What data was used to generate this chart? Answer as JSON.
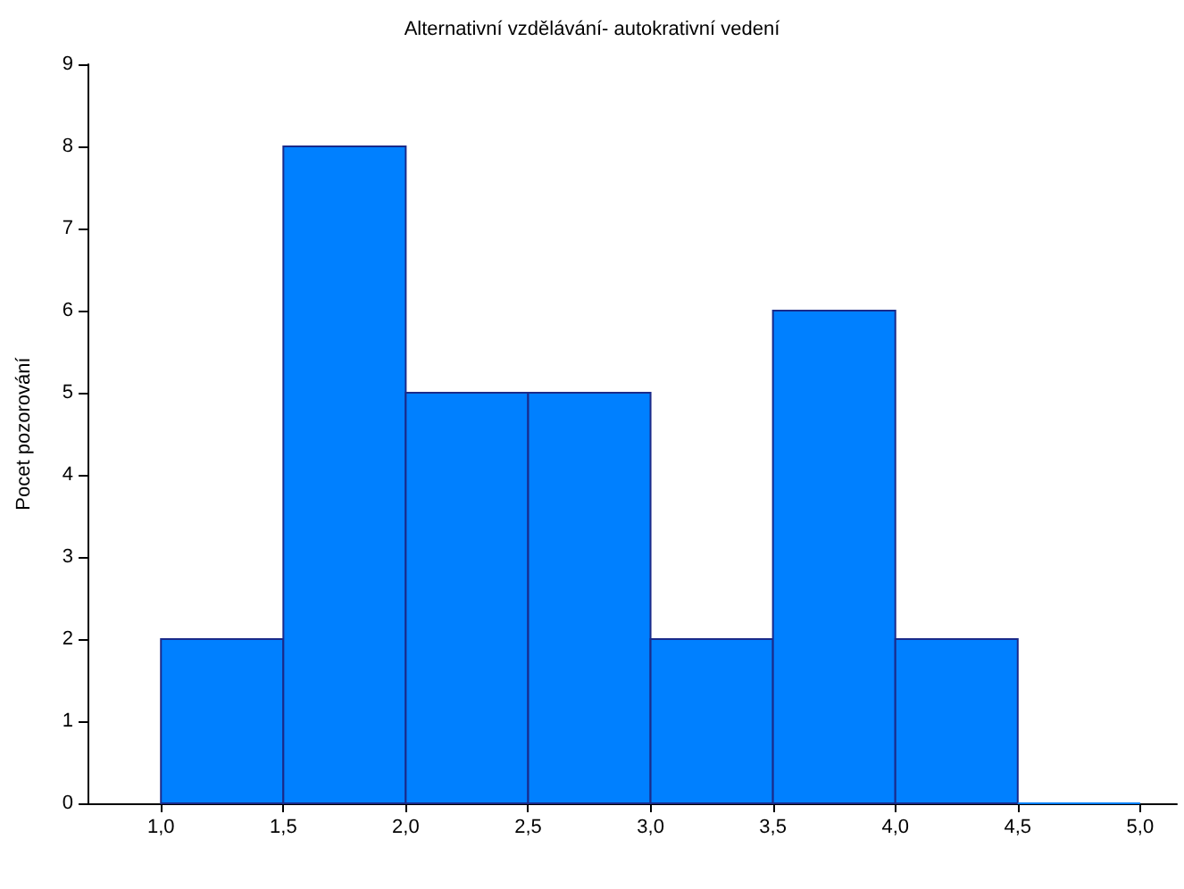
{
  "chart_data": {
    "type": "histogram",
    "title": "Alternativní vzdělávání- autokrativní vedení",
    "ylabel": "Pocet pozorování",
    "bins": [
      1.0,
      1.5,
      2.0,
      2.5,
      3.0,
      3.5,
      4.0,
      4.5,
      5.0
    ],
    "values": [
      2,
      8,
      5,
      5,
      2,
      6,
      2,
      0
    ],
    "color": "#0080ff",
    "xlim": [
      0.7,
      5.15
    ],
    "xticks": [
      {
        "value": 1,
        "label": "1,0"
      },
      {
        "value": 1.5,
        "label": "1,5"
      },
      {
        "value": 2,
        "label": "2,0"
      },
      {
        "value": 2.5,
        "label": "2,5"
      },
      {
        "value": 3,
        "label": "3,0"
      },
      {
        "value": 3.5,
        "label": "3,5"
      },
      {
        "value": 4,
        "label": "4,0"
      },
      {
        "value": 4.5,
        "label": "4,5"
      },
      {
        "value": 5,
        "label": "5,0"
      }
    ],
    "ylim": [
      0,
      9
    ],
    "yticks": [
      0,
      1,
      2,
      3,
      4,
      5,
      6,
      7,
      8,
      9
    ],
    "grid": false
  }
}
